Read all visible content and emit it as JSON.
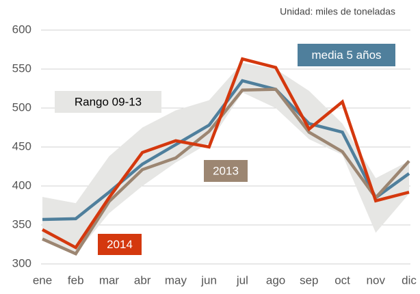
{
  "chart_data": {
    "type": "line",
    "subtitle": "Unidad: miles de toneladas",
    "categories": [
      "ene",
      "feb",
      "mar",
      "abr",
      "may",
      "jun",
      "jul",
      "ago",
      "sep",
      "oct",
      "nov",
      "dic"
    ],
    "range": {
      "name": "Rango 09-13",
      "color": "#e6e6e4",
      "low": [
        330,
        313,
        365,
        400,
        430,
        455,
        520,
        500,
        460,
        440,
        340,
        390
      ],
      "high": [
        386,
        378,
        438,
        475,
        497,
        510,
        558,
        550,
        522,
        480,
        410,
        432
      ]
    },
    "series": [
      {
        "name": "media 5 años",
        "color": "#4f7f9c",
        "values": [
          357,
          358,
          392,
          428,
          453,
          478,
          535,
          524,
          480,
          469,
          385,
          416
        ]
      },
      {
        "name": "2013",
        "color": "#9c8672",
        "values": [
          332,
          313,
          380,
          421,
          436,
          470,
          523,
          524,
          469,
          444,
          385,
          432
        ]
      },
      {
        "name": "2014",
        "color": "#d4380e",
        "values": [
          344,
          321,
          385,
          443,
          458,
          450,
          563,
          552,
          473,
          508,
          381,
          392
        ]
      }
    ],
    "ylim": [
      300,
      600
    ],
    "yticks": [
      300,
      350,
      400,
      450,
      500,
      550,
      600
    ],
    "grid": true
  }
}
